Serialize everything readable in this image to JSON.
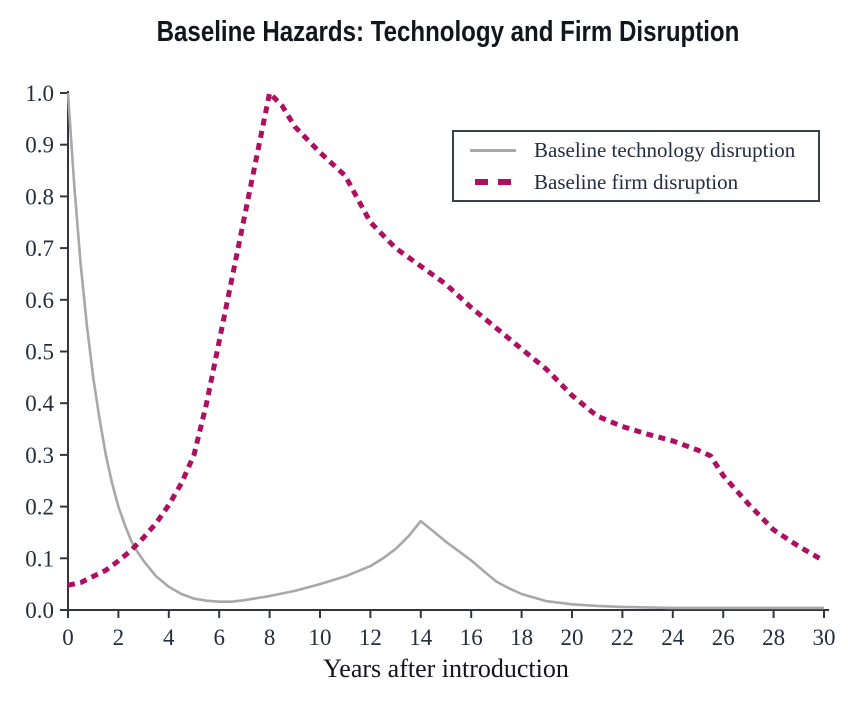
{
  "title": "Baseline Hazards: Technology and Firm Disruption",
  "colors": {
    "technology_line": "#a8a8a8",
    "firm_line": "#ad1060",
    "text": "#232d3f",
    "title_text": "#13151c",
    "axis": "#33373d",
    "background": "#ffffff"
  },
  "chart_data": {
    "type": "line",
    "title": "Baseline Hazards: Technology and Firm Disruption",
    "xlabel": "Years after introduction",
    "ylabel": "",
    "xlim": [
      0,
      30
    ],
    "ylim": [
      0.0,
      1.0
    ],
    "grid": false,
    "legend_position": "upper right",
    "xticks": [
      {
        "v": 0,
        "label": "0"
      },
      {
        "v": 2,
        "label": "2"
      },
      {
        "v": 4,
        "label": "4"
      },
      {
        "v": 6,
        "label": "6"
      },
      {
        "v": 8,
        "label": "8"
      },
      {
        "v": 10,
        "label": "10"
      },
      {
        "v": 12,
        "label": "12"
      },
      {
        "v": 14,
        "label": "14"
      },
      {
        "v": 16,
        "label": "16"
      },
      {
        "v": 18,
        "label": "18"
      },
      {
        "v": 20,
        "label": "20"
      },
      {
        "v": 22,
        "label": "22"
      },
      {
        "v": 24,
        "label": "24"
      },
      {
        "v": 26,
        "label": "26"
      },
      {
        "v": 28,
        "label": "28"
      },
      {
        "v": 30,
        "label": "30"
      }
    ],
    "yticks": [
      {
        "v": 0.0,
        "label": "0.0"
      },
      {
        "v": 0.1,
        "label": "0.1"
      },
      {
        "v": 0.2,
        "label": "0.2"
      },
      {
        "v": 0.3,
        "label": "0.3"
      },
      {
        "v": 0.4,
        "label": "0.4"
      },
      {
        "v": 0.5,
        "label": "0.5"
      },
      {
        "v": 0.6,
        "label": "0.6"
      },
      {
        "v": 0.7,
        "label": "0.7"
      },
      {
        "v": 0.8,
        "label": "0.8"
      },
      {
        "v": 0.9,
        "label": "0.9"
      },
      {
        "v": 1.0,
        "label": "1.0"
      }
    ],
    "series": [
      {
        "id": "technology",
        "name": "Baseline technology disruption",
        "color": "#a8a8a8",
        "line_style": "solid",
        "points": [
          [
            0,
            1.0
          ],
          [
            0.25,
            0.82
          ],
          [
            0.5,
            0.67
          ],
          [
            0.75,
            0.55
          ],
          [
            1,
            0.45
          ],
          [
            1.25,
            0.37
          ],
          [
            1.5,
            0.3
          ],
          [
            1.75,
            0.245
          ],
          [
            2,
            0.2
          ],
          [
            2.25,
            0.165
          ],
          [
            2.5,
            0.135
          ],
          [
            2.75,
            0.113
          ],
          [
            3,
            0.095
          ],
          [
            3.5,
            0.065
          ],
          [
            4,
            0.045
          ],
          [
            4.5,
            0.031
          ],
          [
            5,
            0.022
          ],
          [
            5.5,
            0.018
          ],
          [
            6,
            0.016
          ],
          [
            6.5,
            0.016
          ],
          [
            7,
            0.019
          ],
          [
            7.5,
            0.023
          ],
          [
            8,
            0.027
          ],
          [
            9,
            0.037
          ],
          [
            10,
            0.05
          ],
          [
            11,
            0.065
          ],
          [
            12,
            0.085
          ],
          [
            12.5,
            0.1
          ],
          [
            13,
            0.118
          ],
          [
            13.5,
            0.142
          ],
          [
            14,
            0.172
          ],
          [
            14.5,
            0.152
          ],
          [
            15,
            0.132
          ],
          [
            15.5,
            0.114
          ],
          [
            16,
            0.096
          ],
          [
            16.5,
            0.075
          ],
          [
            17,
            0.055
          ],
          [
            17.5,
            0.042
          ],
          [
            18,
            0.031
          ],
          [
            19,
            0.017
          ],
          [
            20,
            0.011
          ],
          [
            21,
            0.008
          ],
          [
            22,
            0.006
          ],
          [
            23,
            0.005
          ],
          [
            24,
            0.004
          ],
          [
            26,
            0.004
          ],
          [
            28,
            0.004
          ],
          [
            30,
            0.004
          ]
        ]
      },
      {
        "id": "firm",
        "name": "Baseline firm disruption",
        "color": "#ad1060",
        "line_style": "dashed",
        "points": [
          [
            0,
            0.048
          ],
          [
            0.5,
            0.053
          ],
          [
            1,
            0.065
          ],
          [
            1.5,
            0.077
          ],
          [
            2,
            0.095
          ],
          [
            2.5,
            0.115
          ],
          [
            3,
            0.14
          ],
          [
            3.5,
            0.168
          ],
          [
            4,
            0.203
          ],
          [
            4.5,
            0.245
          ],
          [
            5,
            0.3
          ],
          [
            5.5,
            0.4
          ],
          [
            6,
            0.52
          ],
          [
            6.5,
            0.64
          ],
          [
            7,
            0.76
          ],
          [
            7.5,
            0.88
          ],
          [
            8,
            1.0
          ],
          [
            8.5,
            0.975
          ],
          [
            9,
            0.935
          ],
          [
            10,
            0.885
          ],
          [
            11,
            0.84
          ],
          [
            12,
            0.75
          ],
          [
            13,
            0.7
          ],
          [
            14,
            0.665
          ],
          [
            15,
            0.63
          ],
          [
            16,
            0.585
          ],
          [
            17,
            0.545
          ],
          [
            18,
            0.505
          ],
          [
            19,
            0.465
          ],
          [
            20,
            0.415
          ],
          [
            21,
            0.375
          ],
          [
            22,
            0.355
          ],
          [
            23,
            0.34
          ],
          [
            24,
            0.327
          ],
          [
            25,
            0.309
          ],
          [
            25.5,
            0.298
          ],
          [
            26,
            0.26
          ],
          [
            27,
            0.205
          ],
          [
            28,
            0.155
          ],
          [
            29,
            0.123
          ],
          [
            30,
            0.095
          ]
        ]
      }
    ]
  }
}
